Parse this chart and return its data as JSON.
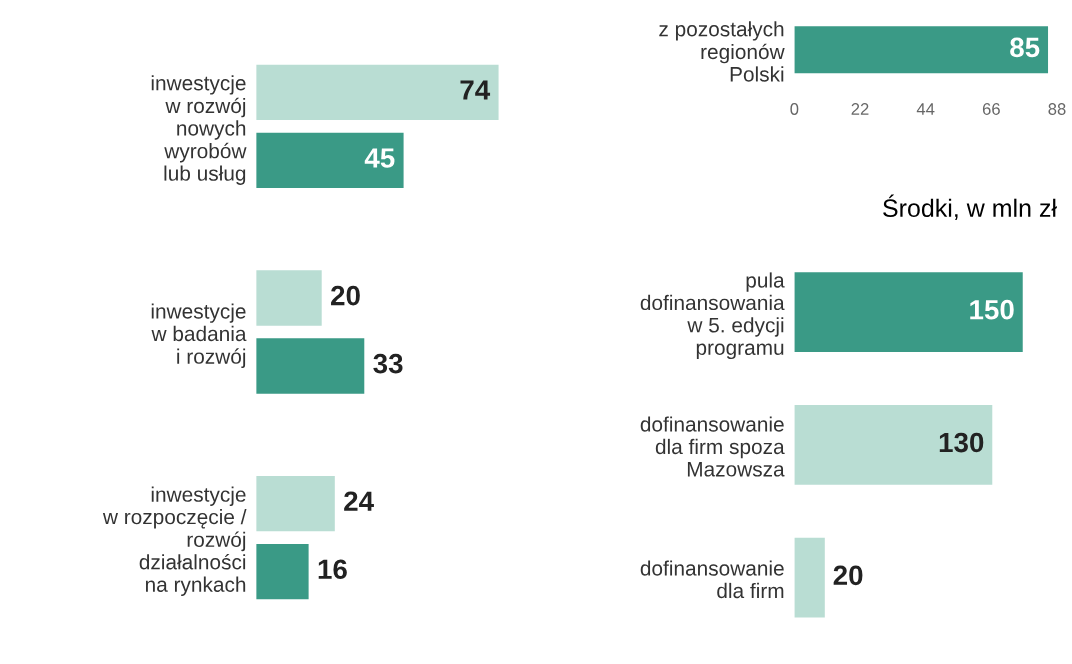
{
  "chart_data": [
    {
      "type": "bar",
      "orientation": "horizontal",
      "categories": [
        "inwestycje\nw rozwój\nnowych\nwyrobów\nlub usług",
        "inwestycje\nw badania\ni rozwój",
        "inwestycje\nw rozpoczęcie /\nrozwój\ndziałalności\nna rynkach"
      ],
      "data_labels": true,
      "series": [
        {
          "color": "#b9ddd3",
          "values": [
            74,
            20,
            24
          ]
        },
        {
          "color": "#3a9a86",
          "values": [
            45,
            33,
            16
          ]
        }
      ]
    },
    {
      "type": "bar",
      "orientation": "horizontal",
      "categories": [
        "z pozostałych\nregionów\nPolski"
      ],
      "values": [
        85
      ],
      "colors": [
        "#3a9a86"
      ],
      "xlim": [
        0,
        88
      ],
      "xticks": [
        0,
        22,
        44,
        66,
        88
      ],
      "data_labels": true
    },
    {
      "type": "bar",
      "orientation": "horizontal",
      "title": "Środki, w mln zł",
      "categories": [
        "pula\ndofinansowania\nw 5. edycji\nprogramu",
        "dofinansowanie\ndla firm spoza\nMazowsza",
        "dofinansowanie\ndla firm"
      ],
      "values": [
        150,
        130,
        20
      ],
      "colors": [
        "#3a9a86",
        "#b9ddd3",
        "#b9ddd3"
      ],
      "data_labels": true
    }
  ]
}
